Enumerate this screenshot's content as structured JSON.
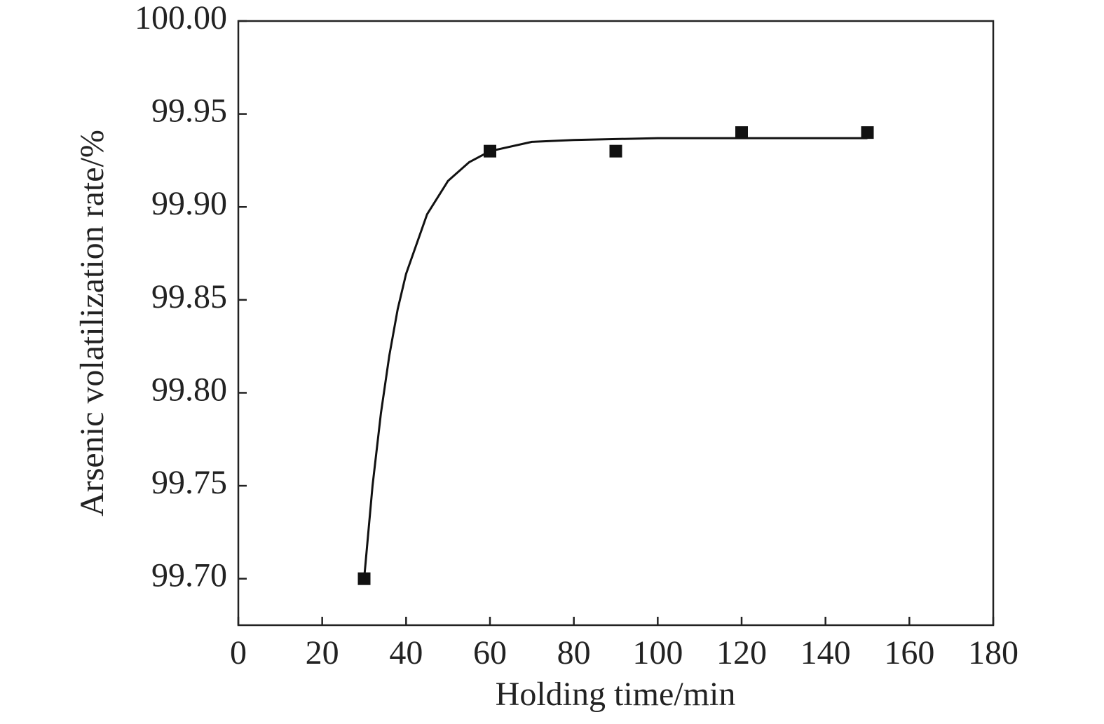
{
  "chart_data": {
    "type": "scatter",
    "xlabel": "Holding time/min",
    "ylabel": "Arsenic volatilization rate/%",
    "series": [
      {
        "style": "markers",
        "color": "#111111",
        "x": [
          30,
          60,
          90,
          120,
          150
        ],
        "values": [
          99.7,
          99.93,
          99.93,
          99.94,
          99.94
        ]
      },
      {
        "style": "line",
        "color": "#111111",
        "x": [
          30,
          32,
          34,
          36,
          38,
          40,
          45,
          50,
          55,
          60,
          70,
          80,
          100,
          120,
          150
        ],
        "values": [
          99.7,
          99.75,
          99.789,
          99.82,
          99.845,
          99.864,
          99.896,
          99.914,
          99.924,
          99.93,
          99.935,
          99.936,
          99.937,
          99.937,
          99.937
        ]
      }
    ],
    "xlim": [
      0,
      180
    ],
    "xticks": [
      0,
      20,
      40,
      60,
      80,
      100,
      120,
      140,
      160,
      180
    ],
    "ylim": [
      99.675,
      100
    ],
    "yticks": [
      {
        "value": 99.7,
        "label": "99.70"
      },
      99.75,
      {
        "value": 99.8,
        "label": "99.80"
      },
      99.85,
      {
        "value": 99.9,
        "label": "99.90"
      },
      99.95,
      {
        "value": 100,
        "label": "100.00"
      }
    ],
    "grid": false
  }
}
